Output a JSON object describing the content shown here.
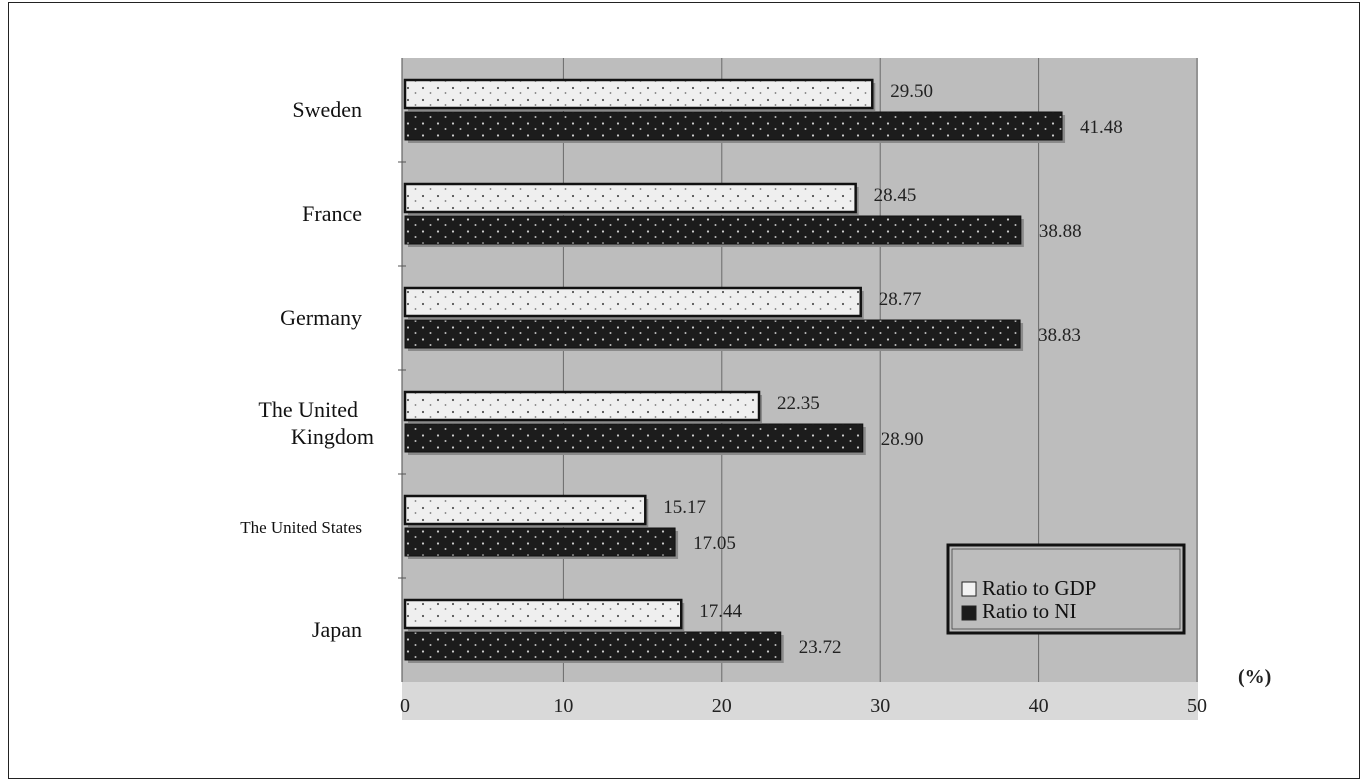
{
  "chart_data": {
    "type": "bar",
    "orientation": "horizontal",
    "categories": [
      "Sweden",
      "France",
      "Germany",
      "The United Kingdom",
      "The United States",
      "Japan"
    ],
    "series": [
      {
        "name": "Ratio to GDP",
        "values": [
          29.5,
          28.45,
          28.77,
          22.35,
          15.17,
          17.44
        ],
        "labels": [
          "29.50",
          "28.45",
          "28.77",
          "22.35",
          "15.17",
          "17.44"
        ],
        "color": "#eeeeee"
      },
      {
        "name": "Ratio to NI",
        "values": [
          41.48,
          38.88,
          38.83,
          28.9,
          17.05,
          23.72
        ],
        "labels": [
          "41.48",
          "38.88",
          "38.83",
          "28.90",
          "17.05",
          "23.72"
        ],
        "color": "#1e1e1e"
      }
    ],
    "xlim": [
      0,
      50
    ],
    "ticks": [
      "0",
      "10",
      "20",
      "30",
      "40",
      "50"
    ],
    "unit_label": "(%)",
    "grid": "vertical",
    "legend_position": "bottom-right",
    "plot_background": "#bcbcbc"
  }
}
